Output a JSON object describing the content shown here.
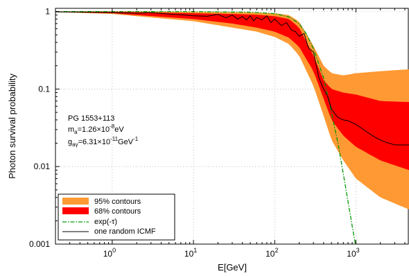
{
  "chart_data": {
    "type": "area",
    "xlabel": "E[GeV]",
    "ylabel": "Photon survival probability",
    "x_scale": "log",
    "y_scale": "log",
    "xlim": [
      0.2,
      4500
    ],
    "ylim": [
      0.001,
      1.1
    ],
    "grid": true,
    "x_ticks": [
      {
        "value": 1,
        "label_base": "10",
        "label_exp": "0"
      },
      {
        "value": 10,
        "label_base": "10",
        "label_exp": "1"
      },
      {
        "value": 100,
        "label_base": "10",
        "label_exp": "2"
      },
      {
        "value": 1000,
        "label_base": "10",
        "label_exp": "3"
      }
    ],
    "y_ticks": [
      {
        "value": 1,
        "label": "1"
      },
      {
        "value": 0.1,
        "label": "0.1"
      },
      {
        "value": 0.01,
        "label": "0.01"
      },
      {
        "value": 0.001,
        "label": "0.001"
      }
    ],
    "annotation": {
      "source": "PG 1553+113",
      "mass_line": {
        "symbol": "m",
        "sub": "a",
        "value": "=1.26×10",
        "exp": "-8",
        "unit": "eV"
      },
      "coupling_line": {
        "symbol": "g",
        "sub": "aγ",
        "value": "=6.31×10",
        "exp": "-11",
        "unit": "GeV",
        "unit_exp": "-1"
      }
    },
    "legend_position": "bottom-left",
    "series": [
      {
        "name": "95% contours",
        "kind": "band",
        "color": "#FF9933",
        "x": [
          0.2,
          1,
          10,
          30,
          60,
          100,
          150,
          200,
          300,
          400,
          500,
          700,
          1000,
          2000,
          4500
        ],
        "lower": [
          0.985,
          0.93,
          0.75,
          0.62,
          0.55,
          0.47,
          0.38,
          0.27,
          0.11,
          0.045,
          0.022,
          0.012,
          0.007,
          0.004,
          0.0028
        ],
        "upper": [
          1.0,
          1.0,
          0.99,
          0.98,
          0.97,
          0.95,
          0.9,
          0.74,
          0.36,
          0.2,
          0.16,
          0.15,
          0.16,
          0.17,
          0.18
        ]
      },
      {
        "name": "68% contours",
        "kind": "band",
        "color": "#FF0000",
        "x": [
          0.2,
          1,
          10,
          30,
          60,
          100,
          150,
          200,
          300,
          400,
          500,
          700,
          1000,
          2000,
          4500
        ],
        "lower": [
          0.99,
          0.95,
          0.8,
          0.7,
          0.62,
          0.55,
          0.46,
          0.35,
          0.17,
          0.075,
          0.04,
          0.025,
          0.018,
          0.012,
          0.009
        ],
        "upper": [
          1.0,
          0.995,
          0.95,
          0.93,
          0.91,
          0.87,
          0.8,
          0.62,
          0.27,
          0.13,
          0.1,
          0.09,
          0.085,
          0.07,
          0.068
        ]
      },
      {
        "name": "exp(-τ)",
        "kind": "line",
        "color": "#009900",
        "dash": "dashdot",
        "x": [
          0.2,
          1,
          10,
          50,
          100,
          150,
          200,
          250,
          300,
          400,
          500,
          600,
          700,
          800,
          900,
          1000
        ],
        "y": [
          1.0,
          1.0,
          0.997,
          0.98,
          0.94,
          0.85,
          0.7,
          0.5,
          0.33,
          0.14,
          0.05,
          0.02,
          0.008,
          0.0035,
          0.0017,
          0.0009
        ]
      },
      {
        "name": "one random ICMF",
        "kind": "line",
        "color": "#000000",
        "x": [
          0.2,
          0.5,
          1,
          2,
          3,
          5,
          7,
          10,
          15,
          20,
          25,
          30,
          35,
          40,
          45,
          50,
          55,
          60,
          70,
          80,
          90,
          100,
          120,
          140,
          160,
          180,
          200,
          230,
          260,
          300,
          350,
          400,
          450,
          500,
          600,
          700,
          800,
          1000,
          1300,
          1700,
          2200,
          3000,
          4500
        ],
        "y": [
          0.99,
          0.98,
          0.97,
          0.95,
          0.97,
          0.93,
          0.91,
          0.88,
          0.87,
          0.92,
          0.83,
          0.9,
          0.8,
          0.86,
          0.78,
          0.88,
          0.76,
          0.84,
          0.78,
          0.88,
          0.72,
          0.8,
          0.66,
          0.72,
          0.58,
          0.55,
          0.48,
          0.52,
          0.34,
          0.3,
          0.14,
          0.1,
          0.08,
          0.055,
          0.043,
          0.04,
          0.039,
          0.035,
          0.029,
          0.024,
          0.021,
          0.019,
          0.019
        ]
      }
    ]
  }
}
